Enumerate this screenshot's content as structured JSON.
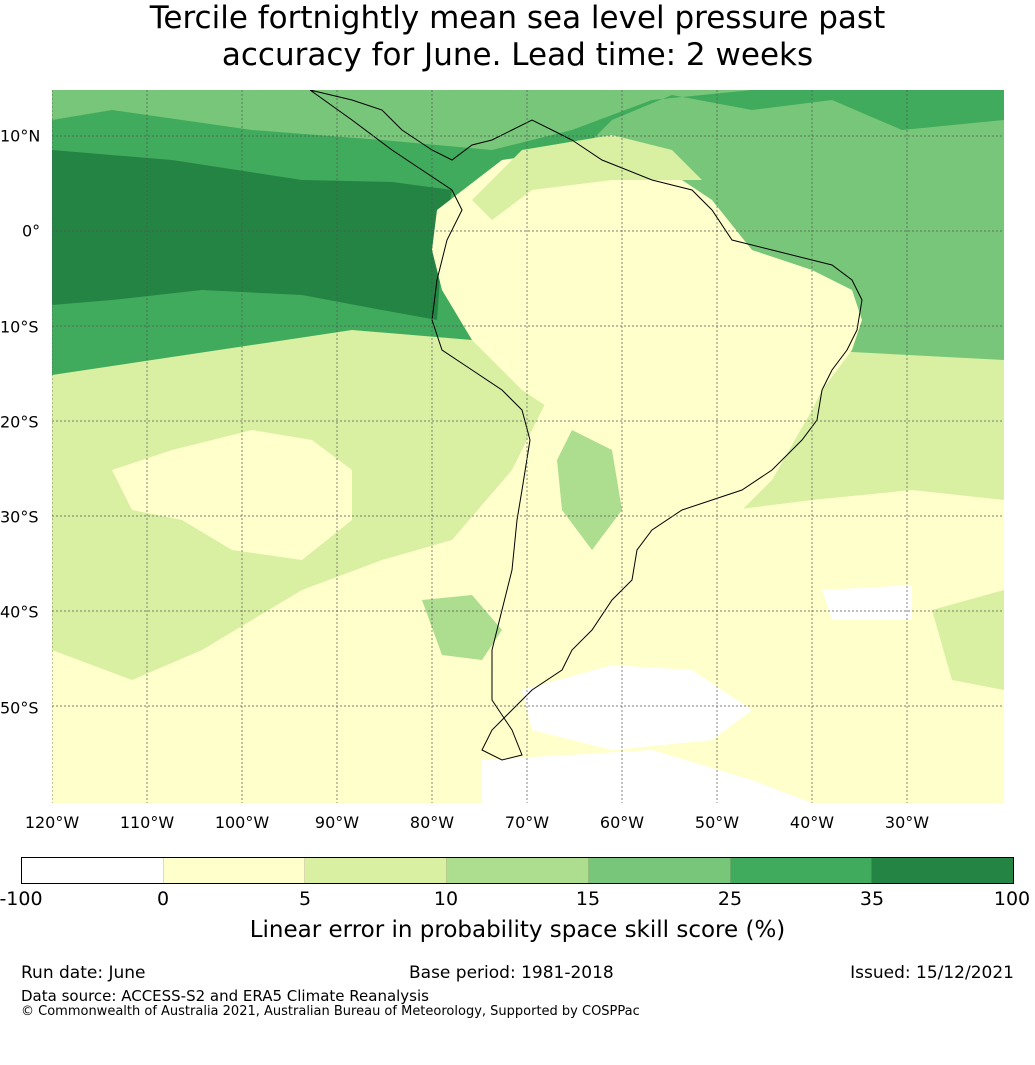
{
  "title": {
    "line1": "Tercile fortnightly mean sea level pressure past",
    "line2": "accuracy for June. Lead time: 2 weeks"
  },
  "map": {
    "region": "South America",
    "longitude_ticks": [
      "120°W",
      "110°W",
      "100°W",
      "90°W",
      "80°W",
      "70°W",
      "60°W",
      "50°W",
      "40°W",
      "30°W"
    ],
    "latitude_ticks": [
      "10°N",
      "0°",
      "10°S",
      "20°S",
      "30°S",
      "40°S",
      "50°S"
    ],
    "grid": true
  },
  "colorbar": {
    "boundaries": [
      "-100",
      "0",
      "5",
      "10",
      "15",
      "25",
      "35",
      "100"
    ],
    "colors": [
      "#ffffff",
      "#ffffcc",
      "#d9f0a3",
      "#addd8e",
      "#78c679",
      "#41ab5d",
      "#238443"
    ],
    "label": "Linear error in probability space skill score (%)"
  },
  "footer": {
    "run_date": "Run date: June",
    "base_period": "Base period: 1981-2018",
    "issued": "Issued: 15/12/2021",
    "data_source": "Data source: ACCESS-S2 and ERA5 Climate Reanalysis",
    "copyright": "© Commonwealth of Australia 2021, Australian Bureau of Meteorology, Supported by COSPPac"
  }
}
